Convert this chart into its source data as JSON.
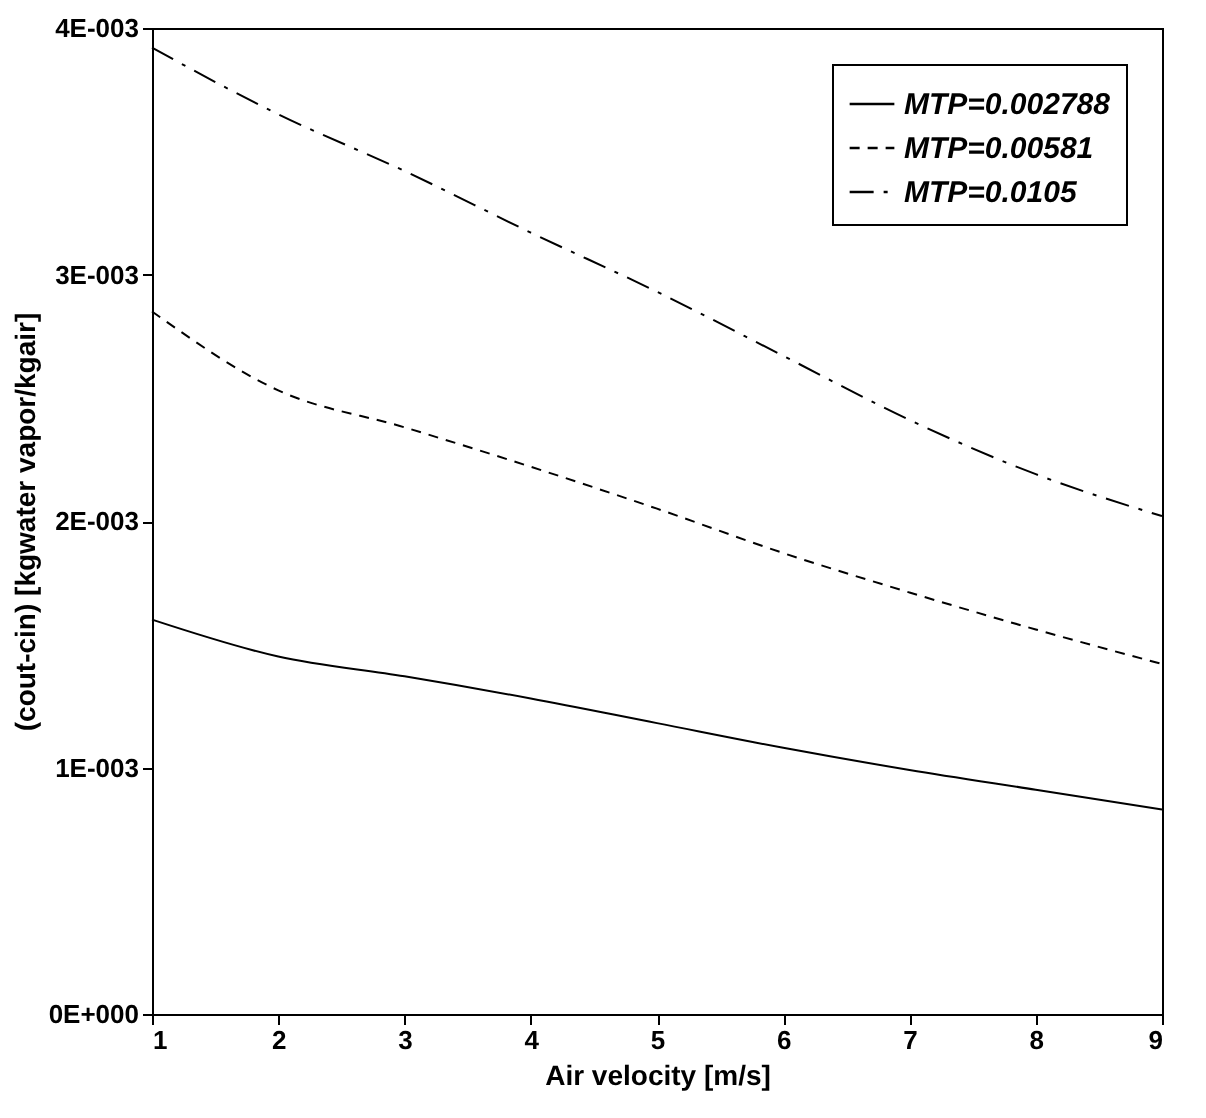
{
  "chart_data": {
    "type": "line",
    "xlabel": "Air velocity [m/s]",
    "ylabel": "(cout-cin) [kgwater vapor/kgair]",
    "x": [
      1,
      2,
      3,
      4,
      5,
      6,
      7,
      8,
      9
    ],
    "series": [
      {
        "name": "MTP=0.002788",
        "color": "#000000",
        "line_style": "solid",
        "values": [
          0.0016,
          0.00145,
          0.00137,
          0.00128,
          0.00118,
          0.00108,
          0.00099,
          0.00091,
          0.00083
        ]
      },
      {
        "name": "MTP=0.00581",
        "color": "#000000",
        "line_style": "dashed",
        "values": [
          0.00285,
          0.00253,
          0.00238,
          0.00222,
          0.00205,
          0.00187,
          0.00171,
          0.00156,
          0.00142
        ]
      },
      {
        "name": "MTP=0.0105",
        "color": "#000000",
        "line_style": "dashdot",
        "values": [
          0.00392,
          0.00365,
          0.00342,
          0.00317,
          0.00293,
          0.00267,
          0.00241,
          0.00219,
          0.00202
        ]
      }
    ],
    "xlim": [
      1,
      9
    ],
    "xticks": [
      1,
      2,
      3,
      4,
      5,
      6,
      7,
      8,
      9
    ],
    "ylim": [
      0,
      0.004
    ],
    "yticks": [
      {
        "value": 0,
        "label": "0E+000"
      },
      {
        "value": 0.001,
        "label": "1E-003"
      },
      {
        "value": 0.002,
        "label": "2E-003"
      },
      {
        "value": 0.003,
        "label": "3E-003"
      },
      {
        "value": 0.004,
        "label": "4E-003"
      }
    ],
    "grid": false,
    "legend": "top right",
    "marker": "none"
  }
}
